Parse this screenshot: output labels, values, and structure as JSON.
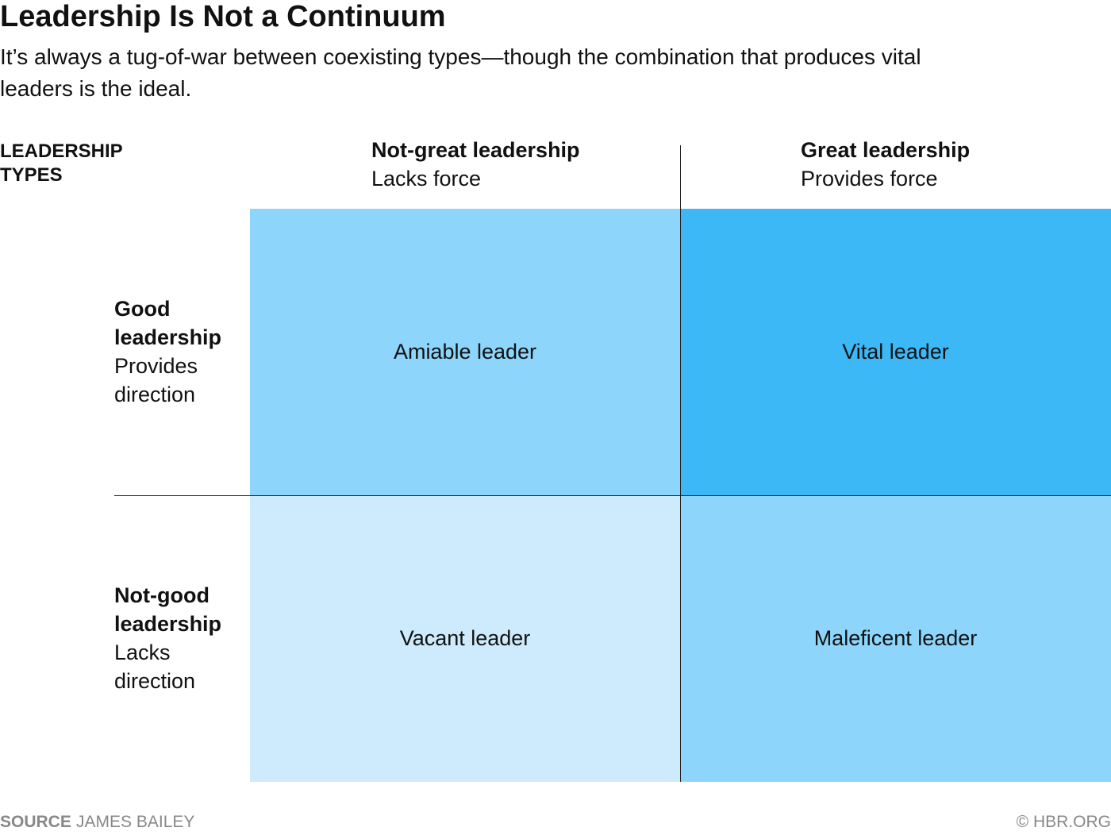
{
  "header": {
    "title": "Leadership Is Not a Continuum",
    "subtitle": "It’s always a tug-of-war between coexisting types—though the combination that produces vital leaders is the ideal."
  },
  "matrix": {
    "corner_label": "LEADERSHIP TYPES",
    "columns": [
      {
        "heading": "Not-great leadership",
        "subheading": "Lacks force"
      },
      {
        "heading": "Great leadership",
        "subheading": "Provides force"
      }
    ],
    "rows": [
      {
        "heading": "Good leadership",
        "subheading": "Provides direction"
      },
      {
        "heading": "Not-good leadership",
        "subheading": "Lacks direction"
      }
    ],
    "cells": [
      [
        "Amiable leader",
        "Vital leader"
      ],
      [
        "Vacant leader",
        "Maleficent leader"
      ]
    ]
  },
  "footer": {
    "source_label": "SOURCE",
    "source": "JAMES BAILEY",
    "credit": "© HBR.ORG"
  }
}
